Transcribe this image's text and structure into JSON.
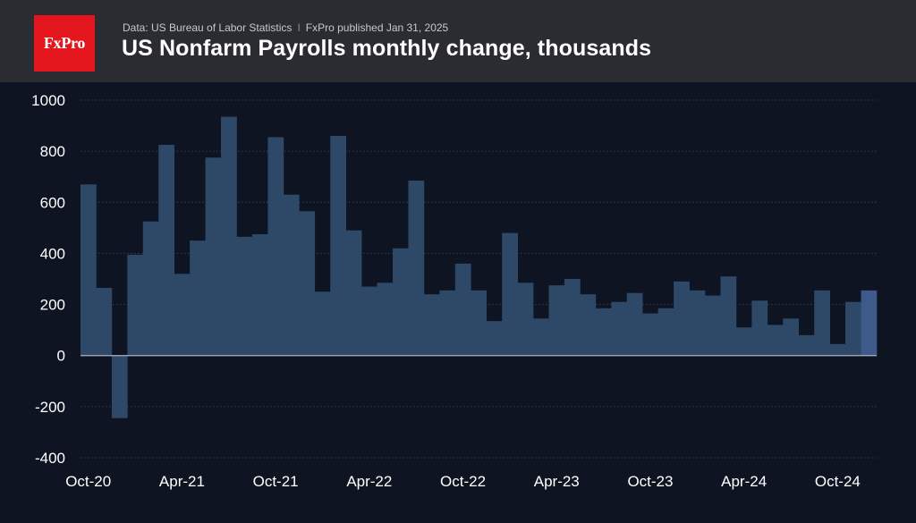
{
  "header": {
    "logo_text": "FxPro",
    "source_left": "Data: US Bureau of Labor Statistics",
    "source_separator": "I",
    "source_right": "FxPro published Jan 31, 2025",
    "title": "US Nonfarm Payrolls monthly change, thousands"
  },
  "colors": {
    "background": "#0e1422",
    "header_bg": "#2b2c31",
    "logo_red": "#e3161d",
    "bar": "#2e4968",
    "bar_highlight": "#3e5a8b",
    "grid": "#3a4150",
    "zero_line": "#a8b4c6"
  },
  "chart_data": {
    "type": "bar",
    "title": "US Nonfarm Payrolls monthly change, thousands",
    "xlabel": "",
    "ylabel": "",
    "ylim": [
      -400,
      1000
    ],
    "yticks": [
      1000,
      800,
      600,
      400,
      200,
      0,
      -200,
      -400
    ],
    "ytick_labels": [
      "1000",
      "800",
      "600",
      "400",
      "200",
      "0",
      "-200",
      "-400"
    ],
    "grid": true,
    "xtick_labels": [
      {
        "label": "Oct-20",
        "index": 0
      },
      {
        "label": "Apr-21",
        "index": 6
      },
      {
        "label": "Oct-21",
        "index": 12
      },
      {
        "label": "Apr-22",
        "index": 18
      },
      {
        "label": "Oct-22",
        "index": 24
      },
      {
        "label": "Apr-23",
        "index": 30
      },
      {
        "label": "Oct-23",
        "index": 36
      },
      {
        "label": "Apr-24",
        "index": 42
      },
      {
        "label": "Oct-24",
        "index": 48
      }
    ],
    "categories": [
      "Oct-20",
      "Nov-20",
      "Dec-20",
      "Jan-21",
      "Feb-21",
      "Mar-21",
      "Apr-21",
      "May-21",
      "Jun-21",
      "Jul-21",
      "Aug-21",
      "Sep-21",
      "Oct-21",
      "Nov-21",
      "Dec-21",
      "Jan-22",
      "Feb-22",
      "Mar-22",
      "Apr-22",
      "May-22",
      "Jun-22",
      "Jul-22",
      "Aug-22",
      "Sep-22",
      "Oct-22",
      "Nov-22",
      "Dec-22",
      "Jan-23",
      "Feb-23",
      "Mar-23",
      "Apr-23",
      "May-23",
      "Jun-23",
      "Jul-23",
      "Aug-23",
      "Sep-23",
      "Oct-23",
      "Nov-23",
      "Dec-23",
      "Jan-24",
      "Feb-24",
      "Mar-24",
      "Apr-24",
      "May-24",
      "Jun-24",
      "Jul-24",
      "Aug-24",
      "Sep-24",
      "Oct-24",
      "Nov-24",
      "Dec-24"
    ],
    "values": [
      670,
      265,
      -245,
      395,
      525,
      825,
      320,
      450,
      775,
      935,
      465,
      475,
      855,
      630,
      565,
      250,
      860,
      490,
      270,
      285,
      420,
      685,
      240,
      255,
      360,
      255,
      135,
      480,
      285,
      145,
      275,
      300,
      240,
      185,
      210,
      245,
      165,
      185,
      290,
      255,
      235,
      310,
      110,
      215,
      120,
      145,
      80,
      255,
      45,
      210,
      255
    ],
    "highlight_index": 50
  }
}
